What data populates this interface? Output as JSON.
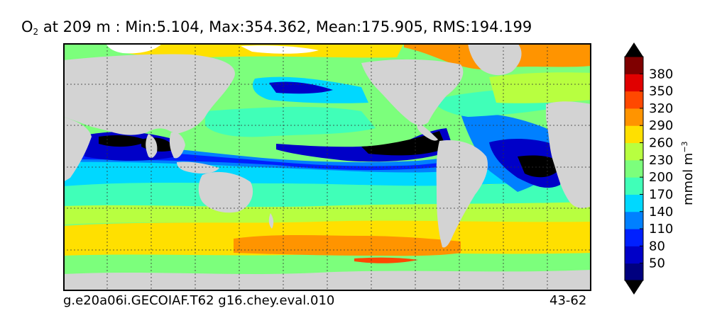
{
  "title": {
    "species": "O",
    "subscript": "2",
    "rest": " at 209 m : Min:5.104, Max:354.362, Mean:175.905, RMS:194.199"
  },
  "footer": {
    "case_name": "g.e20a06i.GECOIAF.T62 g16.chey.eval.010",
    "years": "43-62"
  },
  "colorbar": {
    "unit_base": "mmol m",
    "unit_exp": "−3",
    "ticks": [
      "50",
      "80",
      "110",
      "140",
      "170",
      "200",
      "230",
      "260",
      "290",
      "320",
      "350",
      "380"
    ],
    "colors": [
      "#00007f",
      "#0000c8",
      "#0020ff",
      "#0080ff",
      "#00d8ff",
      "#40ffb8",
      "#7cff7c",
      "#b8ff40",
      "#ffe000",
      "#ff9400",
      "#ff4800",
      "#e00000",
      "#7f0000"
    ],
    "under_color": "#000000",
    "over_color": "#000000"
  },
  "map": {
    "land_color": "#d3d3d3",
    "ice_color": "#ffffff",
    "projection": "cylindrical",
    "gridlines": "dotted"
  }
}
